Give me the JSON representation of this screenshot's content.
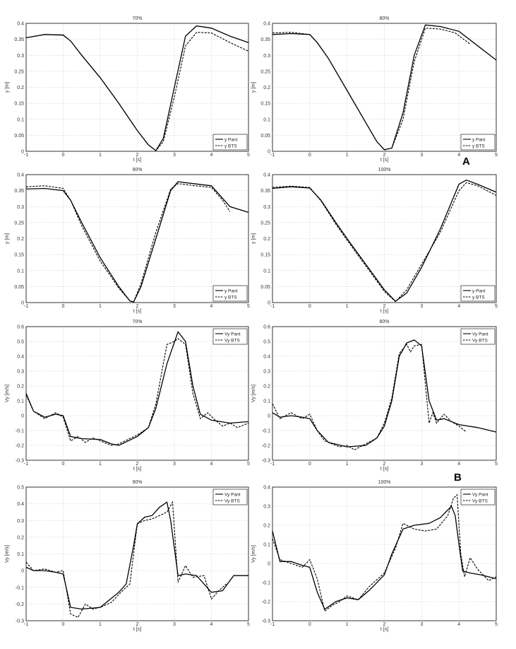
{
  "panel_labels": [
    "A",
    "B"
  ],
  "chart_data": [
    {
      "type": "line",
      "title": "70%",
      "xlabel": "t [s]",
      "ylabel": "y [m]",
      "xlim": [
        -1,
        5
      ],
      "ylim": [
        0,
        0.4
      ],
      "xticks": [
        "-1",
        "0",
        "1",
        "2",
        "3",
        "4",
        "5"
      ],
      "yticks": [
        "0",
        "0.05",
        "0.1",
        "0.15",
        "0.2",
        "0.25",
        "0.3",
        "0.35",
        "0.4"
      ],
      "series": [
        {
          "name": "y Pant",
          "style": "solid",
          "x": [
            -1,
            -0.5,
            0,
            0.2,
            0.5,
            1,
            1.5,
            2,
            2.3,
            2.5,
            2.7,
            3,
            3.3,
            3.6,
            4,
            4.5,
            5
          ],
          "y": [
            0.355,
            0.365,
            0.363,
            0.345,
            0.3,
            0.23,
            0.15,
            0.065,
            0.02,
            0.002,
            0.04,
            0.2,
            0.36,
            0.392,
            0.385,
            0.36,
            0.34
          ]
        },
        {
          "name": "y BTS",
          "style": "dashed",
          "x": [
            -1,
            -0.5,
            0,
            0.2,
            0.5,
            1,
            1.5,
            2,
            2.3,
            2.5,
            2.7,
            3,
            3.3,
            3.6,
            4,
            4.5,
            5
          ],
          "y": [
            0.355,
            0.365,
            0.364,
            0.345,
            0.3,
            0.23,
            0.15,
            0.065,
            0.02,
            0.002,
            0.03,
            0.17,
            0.33,
            0.372,
            0.37,
            0.34,
            0.313
          ]
        }
      ]
    },
    {
      "type": "line",
      "title": "80%",
      "xlabel": "t [s]",
      "ylabel": "y [m]",
      "xlim": [
        -1,
        5
      ],
      "ylim": [
        0,
        0.4
      ],
      "xticks": [
        "-1",
        "0",
        "1",
        "2",
        "3",
        "4",
        "5"
      ],
      "yticks": [
        "0",
        "0.05",
        "0.1",
        "0.15",
        "0.2",
        "0.25",
        "0.3",
        "0.35",
        "0.4"
      ],
      "series": [
        {
          "name": "y Pant",
          "style": "solid",
          "x": [
            -1,
            -0.5,
            0,
            0.2,
            0.5,
            1,
            1.5,
            1.8,
            2,
            2.2,
            2.5,
            2.8,
            3.1,
            3.5,
            4,
            4.5,
            5
          ],
          "y": [
            0.365,
            0.368,
            0.365,
            0.34,
            0.29,
            0.19,
            0.09,
            0.03,
            0.005,
            0.01,
            0.12,
            0.3,
            0.395,
            0.39,
            0.375,
            0.33,
            0.285
          ]
        },
        {
          "name": "y BTS",
          "style": "dashed",
          "x": [
            -1,
            -0.5,
            0,
            0.2,
            0.5,
            1,
            1.5,
            1.8,
            2,
            2.2,
            2.5,
            2.8,
            3.1,
            3.5,
            3.9,
            4.3
          ],
          "y": [
            0.37,
            0.372,
            0.365,
            0.34,
            0.29,
            0.19,
            0.09,
            0.03,
            0.004,
            0.01,
            0.1,
            0.28,
            0.385,
            0.382,
            0.37,
            0.335
          ]
        }
      ]
    },
    {
      "type": "line",
      "title": "90%",
      "xlabel": "t [s]",
      "ylabel": "y [m]",
      "xlim": [
        -1,
        5
      ],
      "ylim": [
        0,
        0.4
      ],
      "xticks": [
        "-1",
        "0",
        "1",
        "2",
        "3",
        "4",
        "5"
      ],
      "yticks": [
        "0",
        "0.05",
        "0.1",
        "0.15",
        "0.2",
        "0.25",
        "0.3",
        "0.35",
        "0.4"
      ],
      "series": [
        {
          "name": "y Pant",
          "style": "solid",
          "x": [
            -1,
            -0.5,
            0,
            0.2,
            0.5,
            1,
            1.5,
            1.8,
            1.9,
            2.1,
            2.5,
            2.9,
            3.1,
            3.5,
            4,
            4.5,
            5
          ],
          "y": [
            0.355,
            0.357,
            0.35,
            0.32,
            0.25,
            0.14,
            0.05,
            0.005,
            0.002,
            0.05,
            0.2,
            0.35,
            0.378,
            0.372,
            0.365,
            0.3,
            0.282
          ]
        },
        {
          "name": "y BTS",
          "style": "dashed",
          "x": [
            -1,
            -0.5,
            0,
            0.2,
            0.5,
            1,
            1.5,
            1.8,
            1.9,
            2.1,
            2.5,
            2.9,
            3.1,
            3.5,
            4,
            4.3,
            4.5
          ],
          "y": [
            0.362,
            0.365,
            0.357,
            0.32,
            0.24,
            0.13,
            0.045,
            0.005,
            0.002,
            0.06,
            0.22,
            0.355,
            0.372,
            0.366,
            0.36,
            0.32,
            0.284
          ]
        }
      ]
    },
    {
      "type": "line",
      "title": "100%",
      "xlabel": "t [s]",
      "ylabel": "y [m]",
      "xlim": [
        -1,
        5
      ],
      "ylim": [
        0,
        0.4
      ],
      "xticks": [
        "-1",
        "0",
        "1",
        "2",
        "3",
        "4",
        "5"
      ],
      "yticks": [
        "0",
        "0.05",
        "0.1",
        "0.15",
        "0.2",
        "0.25",
        "0.3",
        "0.35",
        "0.4"
      ],
      "series": [
        {
          "name": "y Pant",
          "style": "solid",
          "x": [
            -1,
            -0.5,
            0,
            0.3,
            0.7,
            1,
            1.5,
            2,
            2.3,
            2.6,
            3,
            3.5,
            4,
            4.2,
            4.5,
            5
          ],
          "y": [
            0.357,
            0.362,
            0.358,
            0.32,
            0.25,
            0.2,
            0.12,
            0.04,
            0.004,
            0.03,
            0.11,
            0.23,
            0.37,
            0.383,
            0.37,
            0.345
          ]
        },
        {
          "name": "y BTS",
          "style": "dashed",
          "x": [
            -1,
            -0.5,
            0,
            0.3,
            0.7,
            1,
            1.5,
            2,
            2.3,
            2.6,
            3,
            3.5,
            4,
            4.2,
            4.5,
            5
          ],
          "y": [
            0.36,
            0.364,
            0.36,
            0.318,
            0.245,
            0.195,
            0.115,
            0.035,
            0.003,
            0.04,
            0.12,
            0.22,
            0.35,
            0.375,
            0.365,
            0.335
          ]
        }
      ]
    },
    {
      "type": "line",
      "title": "70%",
      "xlabel": "t [s]",
      "ylabel": "Vy [m/s]",
      "xlim": [
        -1,
        5
      ],
      "ylim": [
        -0.3,
        0.6
      ],
      "xticks": [
        "-1",
        "0",
        "1",
        "2",
        "3",
        "4",
        "5"
      ],
      "yticks": [
        "-0.3",
        "-0.2",
        "-0.1",
        "0",
        "0.1",
        "0.2",
        "0.3",
        "0.4",
        "0.5",
        "0.6"
      ],
      "series": [
        {
          "name": "Vy Pant",
          "style": "solid",
          "x": [
            -1,
            -0.8,
            -0.5,
            -0.2,
            0,
            0.2,
            0.5,
            1,
            1.3,
            1.5,
            2,
            2.3,
            2.5,
            2.8,
            3.1,
            3.3,
            3.5,
            3.7,
            4,
            4.5,
            5
          ],
          "y": [
            0.15,
            0.03,
            -0.01,
            0.01,
            0,
            -0.14,
            -0.155,
            -0.16,
            -0.19,
            -0.2,
            -0.14,
            -0.08,
            0.05,
            0.35,
            0.565,
            0.5,
            0.2,
            0.01,
            -0.03,
            -0.05,
            -0.04
          ]
        },
        {
          "name": "Vy BTS",
          "style": "dashed",
          "x": [
            -1,
            -0.8,
            -0.5,
            -0.2,
            0,
            0.2,
            0.4,
            0.6,
            0.8,
            1,
            1.3,
            1.5,
            2,
            2.3,
            2.5,
            2.8,
            3,
            3.1,
            3.3,
            3.5,
            3.7,
            3.9,
            4.1,
            4.3,
            4.5,
            4.7,
            5
          ],
          "y": [
            0.14,
            0.03,
            -0.02,
            0.02,
            -0.01,
            -0.17,
            -0.14,
            -0.18,
            -0.15,
            -0.17,
            -0.2,
            -0.19,
            -0.13,
            -0.08,
            0.08,
            0.48,
            0.5,
            0.52,
            0.48,
            0.15,
            -0.02,
            0.02,
            -0.03,
            -0.07,
            -0.05,
            -0.08,
            -0.05
          ]
        }
      ]
    },
    {
      "type": "line",
      "title": "80%",
      "xlabel": "t [s]",
      "ylabel": "Vy [m/s]",
      "xlim": [
        -1,
        5
      ],
      "ylim": [
        -0.3,
        0.6
      ],
      "xticks": [
        "-1",
        "0",
        "1",
        "2",
        "3",
        "4",
        "5"
      ],
      "yticks": [
        "-0.3",
        "-0.2",
        "-0.1",
        "0",
        "0.1",
        "0.2",
        "0.3",
        "0.4",
        "0.5",
        "0.6"
      ],
      "series": [
        {
          "name": "Vy Pant",
          "style": "solid",
          "x": [
            -1,
            -0.8,
            -0.5,
            -0.2,
            0,
            0.2,
            0.5,
            1,
            1.5,
            1.8,
            2,
            2.2,
            2.4,
            2.6,
            2.8,
            3,
            3.2,
            3.4,
            3.6,
            4,
            4.5,
            5
          ],
          "y": [
            0.02,
            -0.01,
            0,
            -0.01,
            -0.02,
            -0.1,
            -0.18,
            -0.21,
            -0.2,
            -0.15,
            -0.07,
            0.1,
            0.4,
            0.49,
            0.51,
            0.47,
            0.1,
            -0.03,
            -0.02,
            -0.06,
            -0.08,
            -0.11
          ]
        },
        {
          "name": "Vy BTS",
          "style": "dashed",
          "x": [
            -1,
            -0.8,
            -0.5,
            -0.2,
            0,
            0.2,
            0.4,
            0.6,
            0.8,
            1,
            1.2,
            1.5,
            1.8,
            2,
            2.2,
            2.4,
            2.6,
            2.7,
            2.8,
            3,
            3.2,
            3.3,
            3.4,
            3.6,
            3.8,
            4,
            4.2
          ],
          "y": [
            0.08,
            -0.02,
            0.02,
            -0.02,
            0.01,
            -0.1,
            -0.17,
            -0.19,
            -0.21,
            -0.2,
            -0.23,
            -0.19,
            -0.15,
            -0.05,
            0.12,
            0.42,
            0.48,
            0.43,
            0.47,
            0.48,
            -0.05,
            0.02,
            -0.05,
            0.01,
            -0.04,
            -0.07,
            -0.11
          ]
        }
      ]
    },
    {
      "type": "line",
      "title": "90%",
      "xlabel": "t [s]",
      "ylabel": "Vy [m/s]",
      "xlim": [
        -1,
        5
      ],
      "ylim": [
        -0.3,
        0.5
      ],
      "xticks": [
        "-1",
        "0",
        "1",
        "2",
        "3",
        "4",
        "5"
      ],
      "yticks": [
        "-0.3",
        "-0.2",
        "-0.1",
        "0",
        "0.1",
        "0.2",
        "0.3",
        "0.4",
        "0.5"
      ],
      "series": [
        {
          "name": "Vy Pant",
          "style": "solid",
          "x": [
            -1,
            -0.8,
            -0.5,
            -0.2,
            0,
            0.2,
            0.5,
            1,
            1.5,
            1.7,
            1.9,
            2,
            2.2,
            2.4,
            2.6,
            2.8,
            2.9,
            3.1,
            3.3,
            3.6,
            4,
            4.3,
            4.6,
            5
          ],
          "y": [
            0.02,
            0,
            0,
            -0.01,
            -0.02,
            -0.22,
            -0.23,
            -0.22,
            -0.13,
            -0.08,
            0.15,
            0.28,
            0.32,
            0.33,
            0.38,
            0.41,
            0.3,
            -0.03,
            -0.02,
            -0.03,
            -0.13,
            -0.12,
            -0.03,
            -0.03
          ]
        },
        {
          "name": "Vy BTS",
          "style": "dashed",
          "x": [
            -1,
            -0.8,
            -0.5,
            -0.2,
            0,
            0.2,
            0.4,
            0.6,
            0.8,
            1,
            1.3,
            1.6,
            1.8,
            2,
            2.2,
            2.4,
            2.6,
            2.8,
            2.95,
            3.1,
            3.2,
            3.3,
            3.5,
            3.8,
            4,
            4.2,
            4.4
          ],
          "y": [
            0.05,
            0,
            0.01,
            -0.01,
            0,
            -0.26,
            -0.28,
            -0.2,
            -0.23,
            -0.22,
            -0.19,
            -0.12,
            -0.08,
            0.28,
            0.3,
            0.31,
            0.33,
            0.35,
            0.41,
            -0.07,
            -0.02,
            0.03,
            -0.04,
            -0.03,
            -0.17,
            -0.12,
            -0.08
          ]
        }
      ]
    },
    {
      "type": "line",
      "title": "100%",
      "xlabel": "t [s]",
      "ylabel": "Vy [m/s]",
      "xlim": [
        -1,
        5
      ],
      "ylim": [
        -0.3,
        0.4
      ],
      "xticks": [
        "-1",
        "0",
        "1",
        "2",
        "3",
        "4",
        "5"
      ],
      "yticks": [
        "-0.3",
        "-0.2",
        "-0.1",
        "0",
        "0.1",
        "0.2",
        "0.3",
        "0.4"
      ],
      "series": [
        {
          "name": "Vy Pant",
          "style": "solid",
          "x": [
            -1,
            -0.8,
            -0.5,
            -0.2,
            0,
            0.2,
            0.4,
            0.7,
            1,
            1.3,
            1.6,
            2,
            2.2,
            2.5,
            2.8,
            3.2,
            3.5,
            3.8,
            3.9,
            4,
            4.1,
            4.3,
            4.6,
            5
          ],
          "y": [
            0.17,
            0.01,
            0.01,
            -0.01,
            -0.02,
            -0.15,
            -0.24,
            -0.2,
            -0.18,
            -0.19,
            -0.14,
            -0.06,
            0.05,
            0.18,
            0.2,
            0.21,
            0.24,
            0.3,
            0.25,
            0.1,
            -0.04,
            -0.05,
            -0.06,
            -0.08
          ]
        },
        {
          "name": "Vy BTS",
          "style": "dashed",
          "x": [
            -1,
            -0.8,
            -0.5,
            -0.2,
            0,
            0.2,
            0.4,
            0.6,
            0.8,
            1,
            1.3,
            1.6,
            2,
            2.3,
            2.5,
            2.8,
            3.1,
            3.4,
            3.7,
            3.85,
            3.95,
            4.05,
            4.15,
            4.3,
            4.5,
            4.8,
            5
          ],
          "y": [
            0.13,
            0.02,
            0,
            -0.02,
            0.02,
            -0.08,
            -0.25,
            -0.22,
            -0.2,
            -0.17,
            -0.19,
            -0.12,
            -0.05,
            0.08,
            0.21,
            0.18,
            0.17,
            0.18,
            0.25,
            0.34,
            0.36,
            0.05,
            -0.07,
            0.03,
            -0.03,
            -0.09,
            -0.07
          ]
        }
      ]
    }
  ]
}
